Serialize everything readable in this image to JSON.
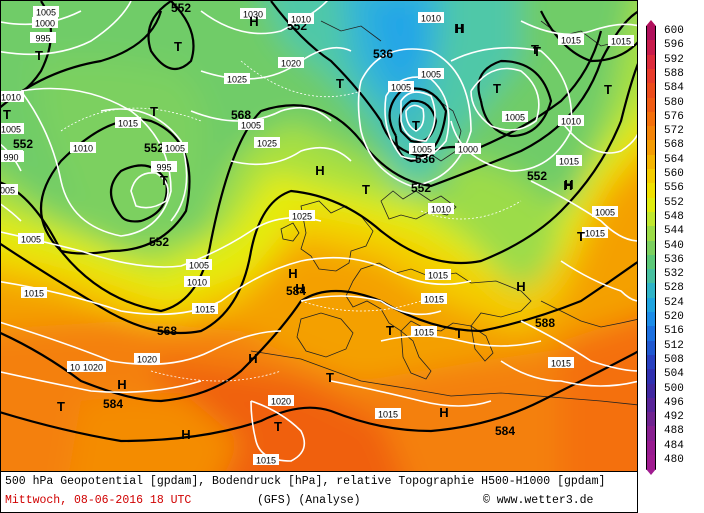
{
  "caption": {
    "line1": "500 hPa Geopotential [gpdam], Bodendruck [hPa], relative Topographie H500-H1000 [gpdam]",
    "date": "Mittwoch, 08-06-2016  18 UTC",
    "model": "(GFS)   (Analyse)",
    "credit": "© www.wetter3.de"
  },
  "legend": {
    "values": [
      "600",
      "596",
      "592",
      "588",
      "584",
      "580",
      "576",
      "572",
      "568",
      "564",
      "560",
      "556",
      "552",
      "548",
      "544",
      "540",
      "536",
      "532",
      "528",
      "524",
      "520",
      "516",
      "512",
      "508",
      "504",
      "500",
      "496",
      "492",
      "488",
      "484",
      "480"
    ],
    "colors": [
      "#b0105c",
      "#c81c4c",
      "#dc2c3c",
      "#e83c2c",
      "#ec4c1c",
      "#f05c14",
      "#f4700c",
      "#f48408",
      "#f49c04",
      "#f4b400",
      "#f4cc00",
      "#f0e000",
      "#e0ec10",
      "#c0e830",
      "#9cdc48",
      "#7cd060",
      "#5cc878",
      "#48c0a0",
      "#30b4c8",
      "#20a4e0",
      "#1c8ce8",
      "#1c70e0",
      "#2058d0",
      "#2840c0",
      "#3030b0",
      "#4028a0",
      "#582498",
      "#702490",
      "#882090",
      "#981c90",
      "#a01c90"
    ]
  },
  "map": {
    "geopotential_labels": [
      {
        "text": "552",
        "k": "a"
      },
      {
        "text": "552",
        "k": "b"
      },
      {
        "text": "536",
        "k": "c"
      },
      {
        "text": "568",
        "k": "d"
      },
      {
        "text": "552",
        "k": "e"
      },
      {
        "text": "552",
        "k": "f"
      },
      {
        "text": "552",
        "k": "g"
      },
      {
        "text": "536",
        "k": "h"
      },
      {
        "text": "552",
        "k": "i"
      },
      {
        "text": "552",
        "k": "j"
      },
      {
        "text": "568",
        "k": "k"
      },
      {
        "text": "584",
        "k": "l"
      },
      {
        "text": "568",
        "k": "m"
      },
      {
        "text": "584",
        "k": "n"
      },
      {
        "text": "588",
        "k": "o"
      },
      {
        "text": "584",
        "k": "p"
      },
      {
        "text": "568",
        "k": "q"
      }
    ],
    "pressure_labels": [
      "1005",
      "1000",
      "995",
      "1030",
      "1020",
      "1010",
      "1025",
      "1015",
      "1005",
      "1000",
      "1005",
      "1005",
      "1005",
      "1015",
      "1010",
      "1010",
      "1005",
      "1020",
      "1015",
      "990",
      "995",
      "1010",
      "1025",
      "1025",
      "1000",
      "1005",
      "1015",
      "1010",
      "1015",
      "1005",
      "1005",
      "1010",
      "1015",
      "1015",
      "1020",
      "1015",
      "1015",
      "1020",
      "1015",
      "1015",
      "1005",
      "1015",
      "1015",
      "1010",
      "1005",
      "1010",
      "1005"
    ],
    "pressure_systems": [
      "H",
      "T",
      "T",
      "H",
      "T",
      "H",
      "T",
      "T",
      "T",
      "H",
      "H",
      "T",
      "T",
      "T",
      "H",
      "T",
      "T",
      "H",
      "T",
      "T",
      "T",
      "H",
      "H",
      "T",
      "T",
      "H",
      "H",
      "H",
      "T",
      "H",
      "T"
    ]
  }
}
